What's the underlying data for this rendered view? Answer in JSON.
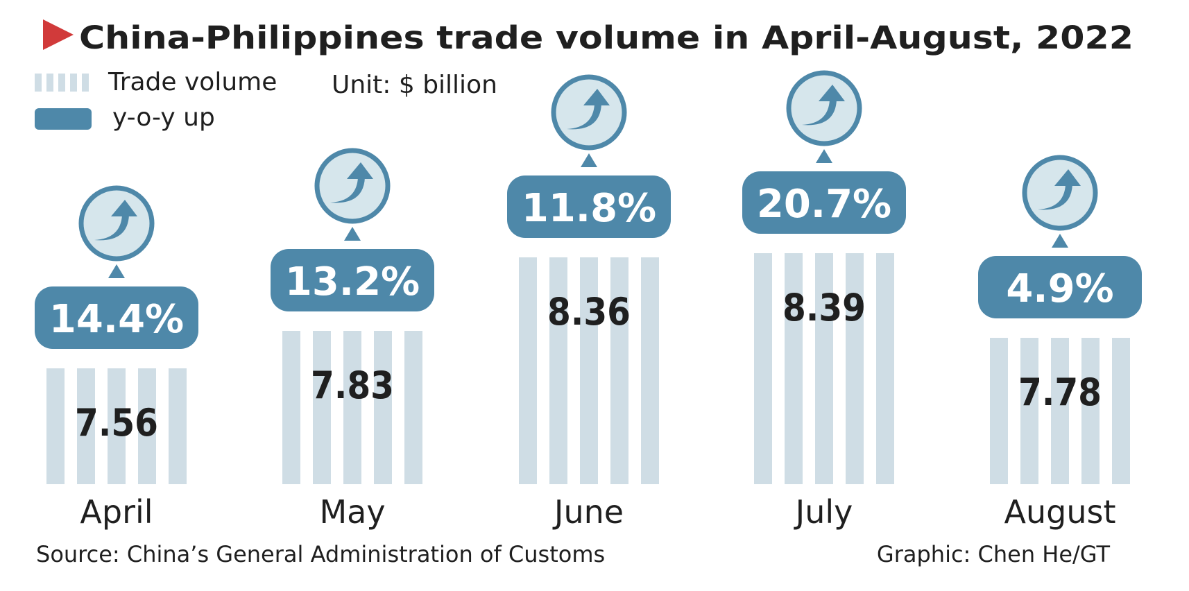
{
  "colors": {
    "accent": "#d13a3a",
    "bar": "#cfdde5",
    "badge": "#4e88a9",
    "icon_fill": "#d6e6ec",
    "text": "#1f1f1f"
  },
  "header": {
    "title": "China-Philippines trade volume in April-August, 2022"
  },
  "legend": {
    "trade_volume_label": "Trade volume",
    "yoy_label": "y-o-y up",
    "unit_label": "Unit: $ billion"
  },
  "chart_data": {
    "type": "bar",
    "title": "China-Philippines trade volume in April-August, 2022",
    "categories": [
      "April",
      "May",
      "June",
      "July",
      "August"
    ],
    "series": [
      {
        "name": "Trade volume",
        "values": [
          7.56,
          7.83,
          8.36,
          8.39,
          7.78
        ]
      },
      {
        "name": "y-o-y up",
        "values": [
          14.4,
          13.2,
          11.8,
          20.7,
          4.9
        ]
      }
    ],
    "value_labels": [
      "7.56",
      "7.83",
      "8.36",
      "8.39",
      "7.78"
    ],
    "yoy_labels": [
      "14.4%",
      "13.2%",
      "11.8%",
      "20.7%",
      "4.9%"
    ],
    "unit": "$ billion",
    "xlabel": "",
    "ylabel": ""
  },
  "footer": {
    "source": "Source: China’s General Administration of Customs",
    "credit": "Graphic: Chen He/GT"
  }
}
